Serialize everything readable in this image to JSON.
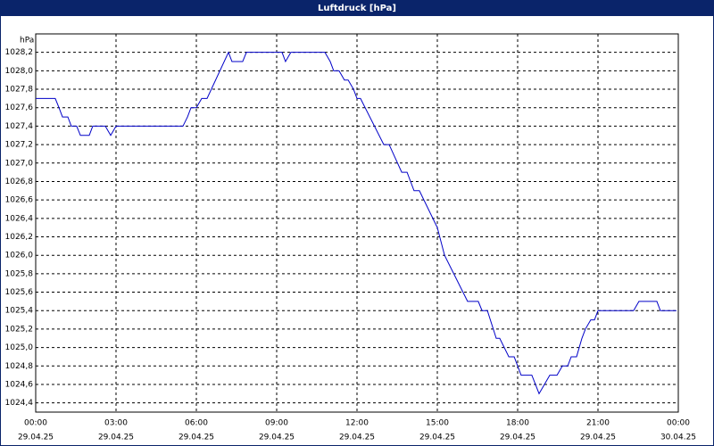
{
  "chart_data": {
    "type": "line",
    "title": "Luftdruck [hPa]",
    "y_label": "hPa",
    "x": [
      0,
      0.73,
      0.87,
      1.0,
      1.2,
      1.33,
      1.53,
      1.67,
      2.0,
      2.13,
      2.6,
      2.8,
      3.0,
      5.5,
      5.67,
      5.8,
      6.0,
      6.2,
      6.4,
      7.2,
      7.33,
      7.73,
      7.87,
      9.2,
      9.33,
      9.53,
      10.8,
      11.0,
      11.13,
      11.33,
      11.53,
      11.67,
      11.87,
      12.0,
      12.13,
      13.0,
      13.2,
      13.67,
      13.87,
      14.13,
      14.33,
      15.0,
      15.27,
      16.13,
      16.53,
      16.67,
      16.87,
      17.2,
      17.33,
      17.67,
      17.87,
      18.13,
      18.53,
      18.8,
      19.2,
      19.47,
      19.67,
      19.87,
      20.0,
      20.2,
      20.4,
      20.53,
      20.73,
      20.87,
      21.0,
      22.33,
      22.53,
      23.2,
      23.33,
      23.93
    ],
    "series": [
      {
        "name": "Luftdruck",
        "color": "#0000c8",
        "values": [
          1027.7,
          1027.7,
          1027.6,
          1027.5,
          1027.5,
          1027.4,
          1027.4,
          1027.3,
          1027.3,
          1027.4,
          1027.4,
          1027.3,
          1027.4,
          1027.4,
          1027.5,
          1027.6,
          1027.6,
          1027.7,
          1027.7,
          1028.2,
          1028.1,
          1028.1,
          1028.2,
          1028.2,
          1028.1,
          1028.2,
          1028.2,
          1028.1,
          1028.0,
          1028.0,
          1027.9,
          1027.9,
          1027.8,
          1027.7,
          1027.7,
          1027.2,
          1027.2,
          1026.9,
          1026.9,
          1026.7,
          1026.7,
          1026.3,
          1026.0,
          1025.5,
          1025.5,
          1025.4,
          1025.4,
          1025.1,
          1025.1,
          1024.9,
          1024.9,
          1024.7,
          1024.7,
          1024.5,
          1024.7,
          1024.7,
          1024.8,
          1024.8,
          1024.9,
          1024.9,
          1025.1,
          1025.2,
          1025.3,
          1025.3,
          1025.4,
          1025.4,
          1025.5,
          1025.5,
          1025.4,
          1025.4
        ]
      }
    ],
    "xlim": [
      0,
      24
    ],
    "xticks": [
      {
        "value": 0,
        "label": "00:00"
      },
      {
        "value": 3,
        "label": "03:00"
      },
      {
        "value": 6,
        "label": "06:00"
      },
      {
        "value": 9,
        "label": "09:00"
      },
      {
        "value": 12,
        "label": "12:00"
      },
      {
        "value": 15,
        "label": "15:00"
      },
      {
        "value": 18,
        "label": "18:00"
      },
      {
        "value": 21,
        "label": "21:00"
      },
      {
        "value": 24,
        "label": "00:00"
      }
    ],
    "xtick_dates": [
      "29.04.25",
      "29.04.25",
      "29.04.25",
      "29.04.25",
      "29.04.25",
      "29.04.25",
      "29.04.25",
      "29.04.25",
      "30.04.25"
    ],
    "ylim": [
      1024.3,
      1028.4
    ],
    "yticks": [
      {
        "value": 1024.4,
        "label": "1024,4"
      },
      {
        "value": 1024.6,
        "label": "1024,6"
      },
      {
        "value": 1024.8,
        "label": "1024,8"
      },
      {
        "value": 1025.0,
        "label": "1025,0"
      },
      {
        "value": 1025.2,
        "label": "1025,2"
      },
      {
        "value": 1025.4,
        "label": "1025,4"
      },
      {
        "value": 1025.6,
        "label": "1025,6"
      },
      {
        "value": 1025.8,
        "label": "1025,8"
      },
      {
        "value": 1026.0,
        "label": "1026,0"
      },
      {
        "value": 1026.2,
        "label": "1026,2"
      },
      {
        "value": 1026.4,
        "label": "1026,4"
      },
      {
        "value": 1026.6,
        "label": "1026,6"
      },
      {
        "value": 1026.8,
        "label": "1026,8"
      },
      {
        "value": 1027.0,
        "label": "1027,0"
      },
      {
        "value": 1027.2,
        "label": "1027,2"
      },
      {
        "value": 1027.4,
        "label": "1027,4"
      },
      {
        "value": 1027.6,
        "label": "1027,6"
      },
      {
        "value": 1027.8,
        "label": "1027,8"
      },
      {
        "value": 1028.0,
        "label": "1028,0"
      },
      {
        "value": 1028.2,
        "label": "1028,2"
      }
    ],
    "grid": true
  }
}
